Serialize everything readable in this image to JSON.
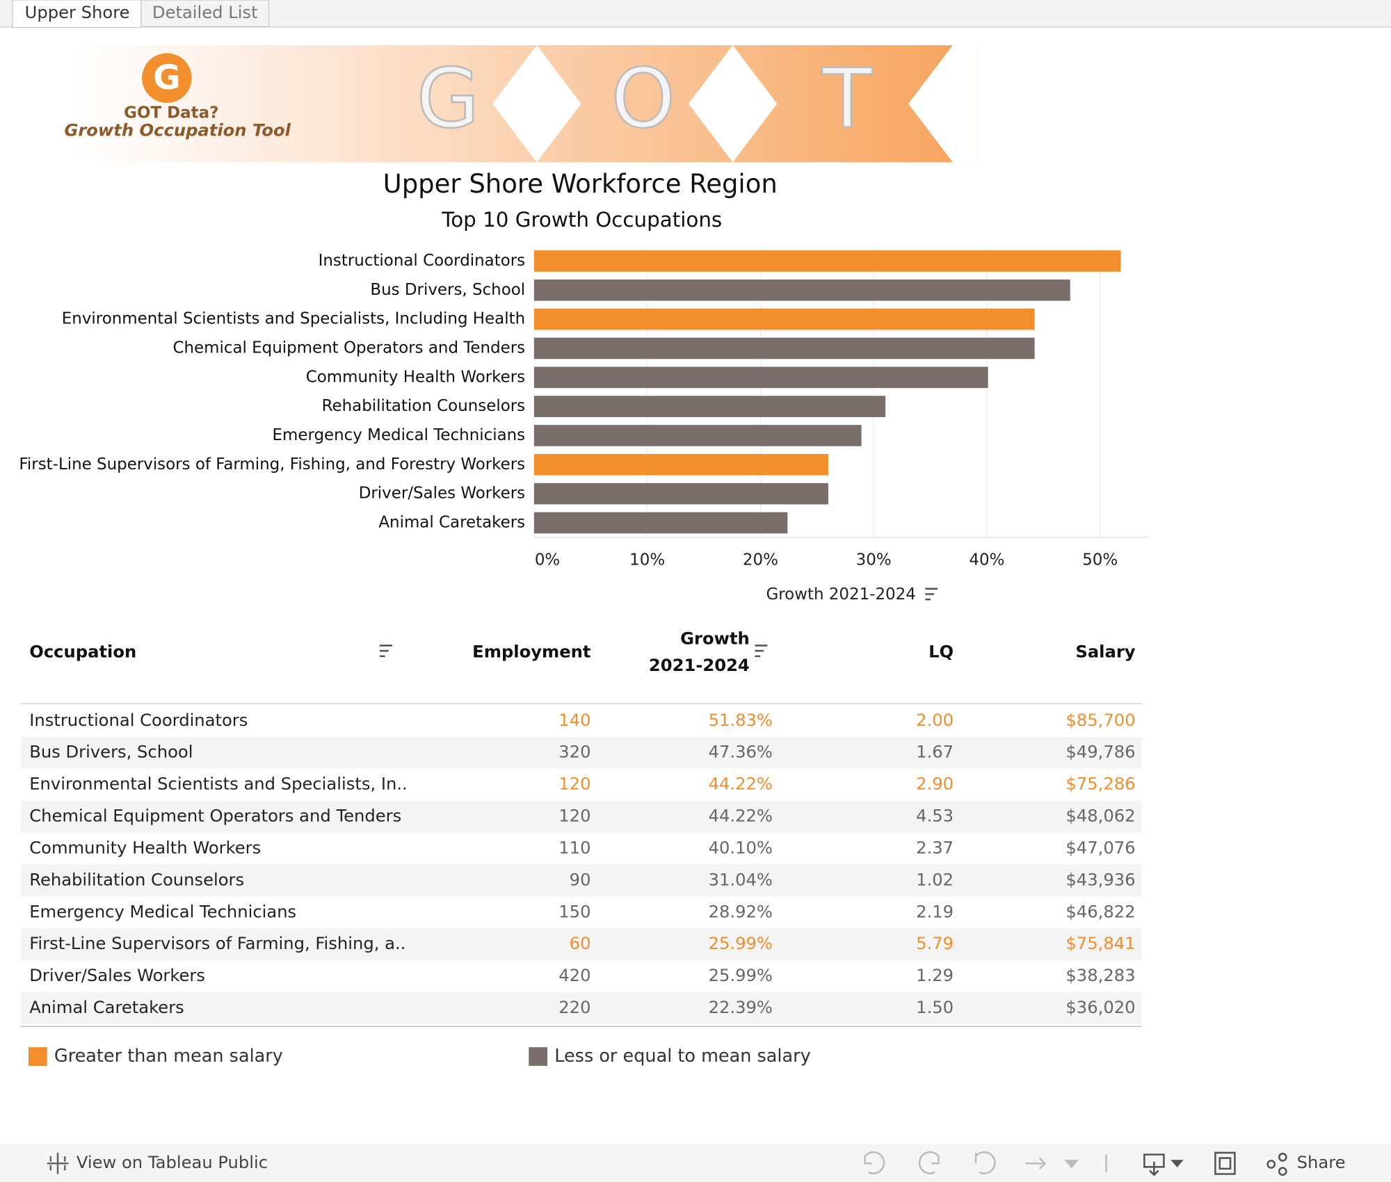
{
  "tabs": [
    "Upper Shore",
    "Detailed List"
  ],
  "banner": {
    "logo_letter": "G",
    "logo_text": "GOT Data?",
    "logo_subtext": "Growth Occupation Tool",
    "letters": [
      "G",
      "O",
      "T"
    ]
  },
  "chart_data": {
    "type": "bar",
    "orientation": "horizontal",
    "title": "Upper Shore Workforce Region",
    "subtitle": "Top 10 Growth Occupations",
    "categories": [
      "Instructional Coordinators",
      "Bus Drivers, School",
      "Environmental Scientists and Specialists, Including Health",
      "Chemical Equipment Operators and Tenders",
      "Community Health Workers",
      "Rehabilitation Counselors",
      "Emergency Medical Technicians",
      "First-Line Supervisors of Farming, Fishing, and Forestry Workers",
      "Driver/Sales Workers",
      "Animal Caretakers"
    ],
    "values": [
      51.83,
      47.36,
      44.22,
      44.22,
      40.1,
      31.04,
      28.92,
      25.99,
      25.99,
      22.39
    ],
    "colors": [
      "#f28e2b",
      "#7a6e6b",
      "#f28e2b",
      "#7a6e6b",
      "#7a6e6b",
      "#7a6e6b",
      "#7a6e6b",
      "#f28e2b",
      "#7a6e6b",
      "#7a6e6b"
    ],
    "xlabel": "Growth 2021-2024",
    "xlim": [
      0,
      54.3
    ],
    "xticks": [
      {
        "value": 0,
        "label": "0%"
      },
      {
        "value": 10,
        "label": "10%"
      },
      {
        "value": 20,
        "label": "20%"
      },
      {
        "value": 30,
        "label": "30%"
      },
      {
        "value": 40,
        "label": "40%"
      },
      {
        "value": 50,
        "label": "50%"
      }
    ],
    "grid": true
  },
  "table": {
    "columns": [
      "Occupation",
      "Employment",
      [
        "Growth",
        "2021-2024"
      ],
      "LQ",
      "Salary"
    ],
    "rows": [
      {
        "cells": [
          "Instructional Coordinators",
          "140",
          "51.83%",
          "2.00",
          "$85,700"
        ],
        "color": "#f28e2b"
      },
      {
        "cells": [
          "Bus Drivers, School",
          "320",
          "47.36%",
          "1.67",
          "$49,786"
        ],
        "color": "#666666"
      },
      {
        "cells": [
          "Environmental Scientists and Specialists, In..",
          "120",
          "44.22%",
          "2.90",
          "$75,286"
        ],
        "color": "#f28e2b"
      },
      {
        "cells": [
          "Chemical Equipment Operators and Tenders",
          "120",
          "44.22%",
          "4.53",
          "$48,062"
        ],
        "color": "#666666"
      },
      {
        "cells": [
          "Community Health Workers",
          "110",
          "40.10%",
          "2.37",
          "$47,076"
        ],
        "color": "#666666"
      },
      {
        "cells": [
          "Rehabilitation Counselors",
          "90",
          "31.04%",
          "1.02",
          "$43,936"
        ],
        "color": "#666666"
      },
      {
        "cells": [
          "Emergency Medical Technicians",
          "150",
          "28.92%",
          "2.19",
          "$46,822"
        ],
        "color": "#666666"
      },
      {
        "cells": [
          "First-Line Supervisors of Farming, Fishing, a..",
          "60",
          "25.99%",
          "5.79",
          "$75,841"
        ],
        "color": "#f28e2b"
      },
      {
        "cells": [
          "Driver/Sales Workers",
          "420",
          "25.99%",
          "1.29",
          "$38,283"
        ],
        "color": "#666666"
      },
      {
        "cells": [
          "Animal Caretakers",
          "220",
          "22.39%",
          "1.50",
          "$36,020"
        ],
        "color": "#666666"
      }
    ]
  },
  "legend": [
    {
      "label": "Greater than mean salary",
      "color": "#f28e2b"
    },
    {
      "label": "Less or equal to mean salary",
      "color": "#7a6e6b"
    }
  ],
  "footer": {
    "link": "View on Tableau Public",
    "share": "Share"
  }
}
